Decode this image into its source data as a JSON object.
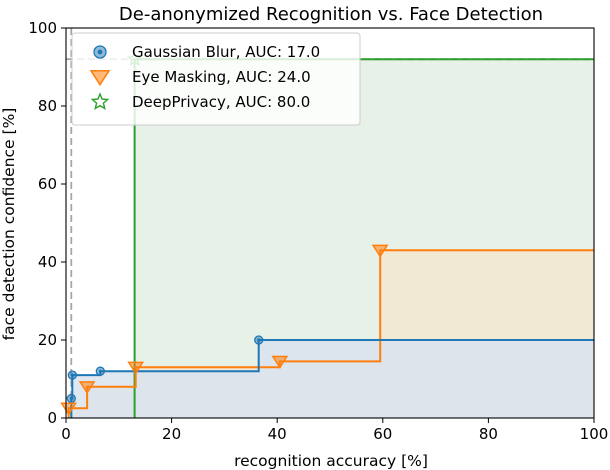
{
  "chart_data": {
    "type": "line",
    "title": "De-anonymized Recognition vs. Face Detection",
    "xlabel": "recognition accuracy [%]",
    "ylabel": "face detection confidence [%]",
    "xlim": [
      0,
      100
    ],
    "ylim": [
      0,
      100
    ],
    "xticks": [
      "0",
      "20",
      "40",
      "60",
      "80",
      "100"
    ],
    "yticks": [
      "0",
      "20",
      "40",
      "60",
      "80",
      "100"
    ],
    "grid": false,
    "legend_position": "top-left",
    "step": "post",
    "reference_lines": {
      "horizontal_y": 92,
      "vertical_x": 1,
      "color": "#a6a6a6",
      "style": "dashed"
    },
    "series": [
      {
        "name": "Gaussian Blur, AUC: 17.0",
        "color": "#1f77b4",
        "fill": "#d9e3ee",
        "marker": "circle",
        "x": [
          1.0,
          1.2,
          6.5,
          36.5
        ],
        "y": [
          5.0,
          11.0,
          12.0,
          20.0
        ]
      },
      {
        "name": "Eye Masking, AUC: 24.0",
        "color": "#ff7f0e",
        "fill": "#f2e7cf",
        "marker": "triangle-down",
        "x": [
          0.5,
          4.0,
          13.2,
          40.5,
          59.5
        ],
        "y": [
          2.5,
          8.0,
          13.0,
          14.5,
          43.0
        ]
      },
      {
        "name": "DeepPrivacy, AUC: 80.0",
        "color": "#2ca02c",
        "fill": "#e3efe3",
        "marker": "star",
        "x": [
          13.0,
          13.0
        ],
        "y": [
          0.0,
          92.0
        ]
      }
    ]
  }
}
